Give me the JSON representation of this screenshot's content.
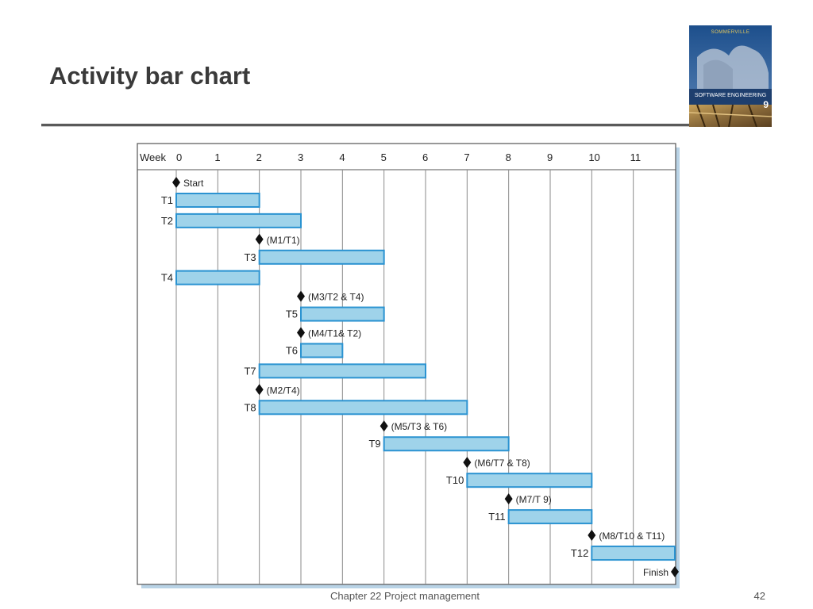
{
  "slide": {
    "title": "Activity bar chart",
    "footer": "Chapter 22 Project management",
    "page_number": "42"
  },
  "book_cover": {
    "series": "SOMMERVILLE",
    "title": "SOFTWARE ENGINEERING",
    "edition": "9"
  },
  "colors": {
    "bar_fill": "#9fd3ea",
    "bar_stroke": "#2b93d1",
    "milestone": "#111111",
    "title_text": "#3a3a3a",
    "rule": "#5a5a5a"
  },
  "chart_data": {
    "type": "gantt",
    "xlabel": "Week",
    "x_ticks": [
      0,
      1,
      2,
      3,
      4,
      5,
      6,
      7,
      8,
      9,
      10,
      11
    ],
    "xlim": [
      0,
      12
    ],
    "grid": true,
    "rows": [
      {
        "kind": "milestone",
        "label": "Start",
        "week": 0,
        "task_label": ""
      },
      {
        "kind": "task",
        "label": "T1",
        "start": 0,
        "end": 2
      },
      {
        "kind": "task",
        "label": "T2",
        "start": 0,
        "end": 3
      },
      {
        "kind": "milestone",
        "label": "(M1/T1)",
        "week": 2
      },
      {
        "kind": "task",
        "label": "T3",
        "start": 2,
        "end": 5
      },
      {
        "kind": "task",
        "label": "T4",
        "start": 0,
        "end": 2
      },
      {
        "kind": "milestone",
        "label": "(M3/T2 & T4)",
        "week": 3
      },
      {
        "kind": "task",
        "label": "T5",
        "start": 3,
        "end": 5
      },
      {
        "kind": "milestone",
        "label": "(M4/T1& T2)",
        "week": 3
      },
      {
        "kind": "task",
        "label": "T6",
        "start": 3,
        "end": 4
      },
      {
        "kind": "task",
        "label": "T7",
        "start": 2,
        "end": 6
      },
      {
        "kind": "milestone",
        "label": "(M2/T4)",
        "week": 2
      },
      {
        "kind": "task",
        "label": "T8",
        "start": 2,
        "end": 7
      },
      {
        "kind": "milestone",
        "label": "(M5/T3 & T6)",
        "week": 5
      },
      {
        "kind": "task",
        "label": "T9",
        "start": 5,
        "end": 8
      },
      {
        "kind": "milestone",
        "label": "(M6/T7 & T8)",
        "week": 7
      },
      {
        "kind": "task",
        "label": "T10",
        "start": 7,
        "end": 10
      },
      {
        "kind": "milestone",
        "label": "(M7/T 9)",
        "week": 8
      },
      {
        "kind": "task",
        "label": "T11",
        "start": 8,
        "end": 10
      },
      {
        "kind": "milestone",
        "label": "(M8/T10 & T11)",
        "week": 10
      },
      {
        "kind": "task",
        "label": "T12",
        "start": 10,
        "end": 12
      },
      {
        "kind": "milestone",
        "label": "Finish",
        "week": 12,
        "label_side": "left"
      }
    ]
  }
}
